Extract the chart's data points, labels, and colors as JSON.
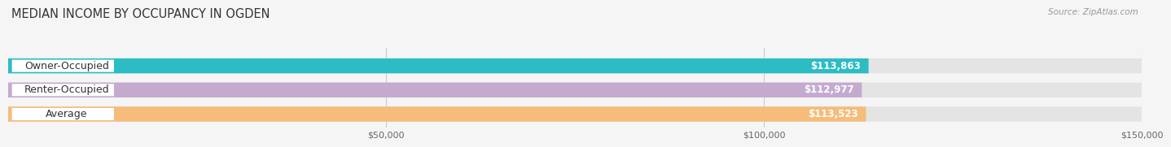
{
  "title": "MEDIAN INCOME BY OCCUPANCY IN OGDEN",
  "source": "Source: ZipAtlas.com",
  "categories": [
    "Owner-Occupied",
    "Renter-Occupied",
    "Average"
  ],
  "values": [
    113863,
    112977,
    113523
  ],
  "labels": [
    "$113,863",
    "$112,977",
    "$113,523"
  ],
  "bar_colors": [
    "#2bbcc4",
    "#c5aad0",
    "#f5bc7a"
  ],
  "bar_background_color": "#e4e4e4",
  "xlim": [
    0,
    150000
  ],
  "xticks": [
    50000,
    100000,
    150000
  ],
  "xticklabels": [
    "$50,000",
    "$100,000",
    "$150,000"
  ],
  "title_fontsize": 10.5,
  "source_fontsize": 7.5,
  "label_fontsize": 8.5,
  "category_fontsize": 9,
  "background_color": "#f5f5f5",
  "bar_height": 0.62,
  "figsize": [
    14.06,
    1.96
  ]
}
